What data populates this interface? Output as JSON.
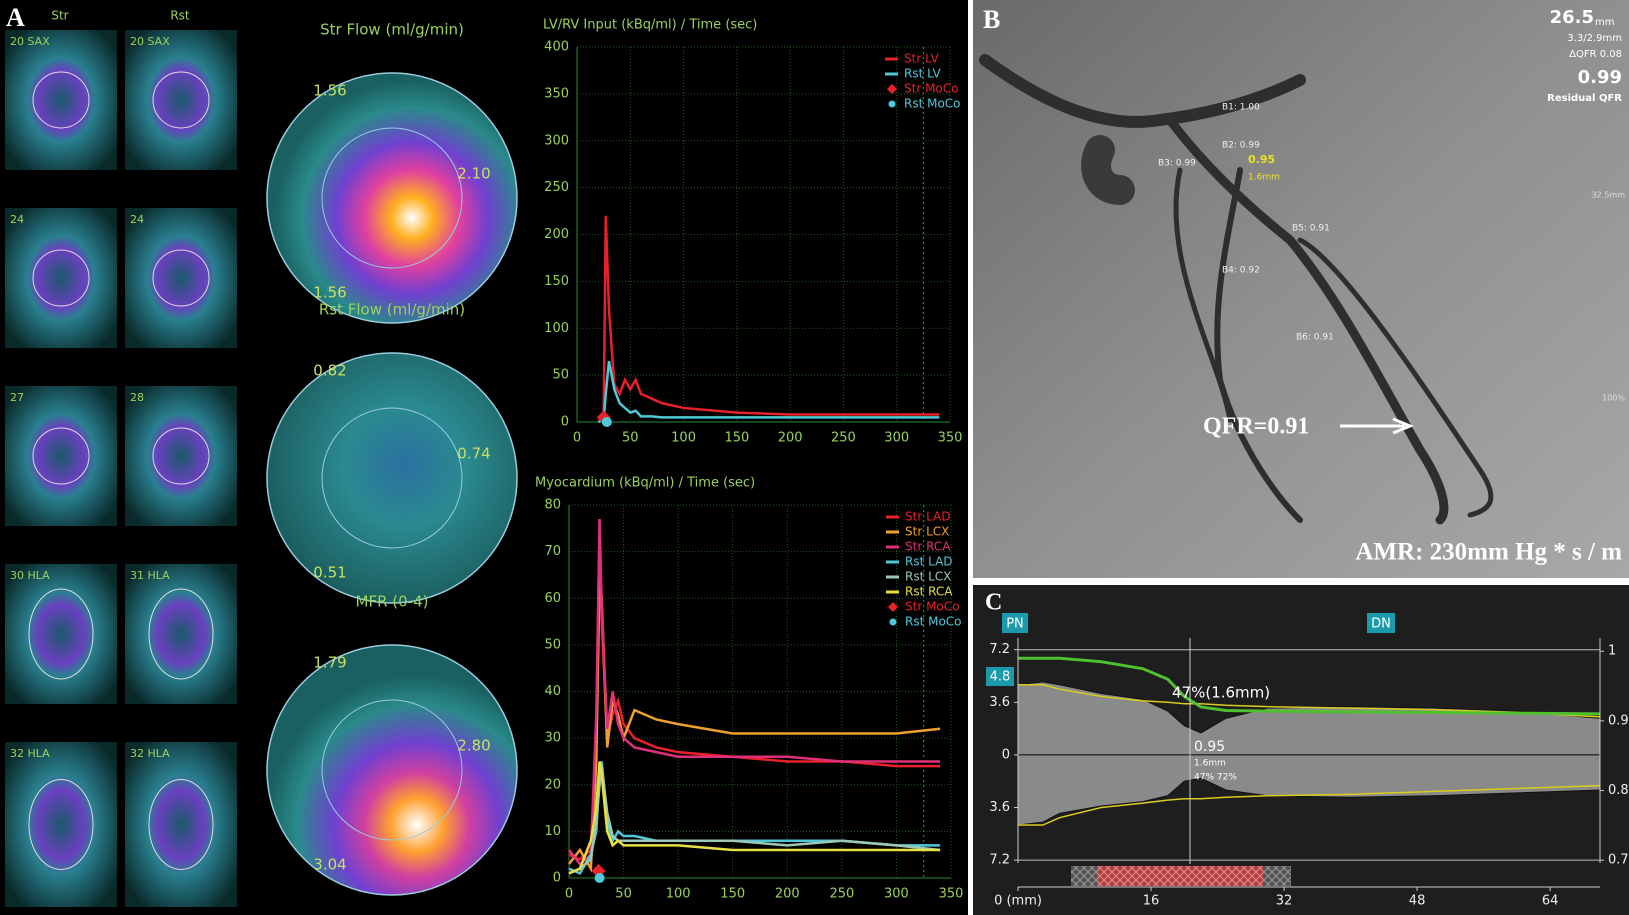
{
  "panel_a": {
    "letter": "A",
    "columns": [
      "Str",
      "Rst"
    ],
    "slices": [
      "20 SAX",
      "20 SAX",
      "24",
      "24",
      "27",
      "28",
      "30 HLA",
      "31 HLA",
      "32 HLA",
      "32 HLA"
    ],
    "maps": [
      {
        "title": "Str Flow (ml/g/min)",
        "values": [
          "1.56",
          "2.10",
          "1.56"
        ]
      },
      {
        "title": "Rst Flow (ml/g/min)",
        "values": [
          "0.82",
          "0.74",
          "0.51"
        ]
      },
      {
        "title": "MFR (0-4)",
        "values": [
          "1.79",
          "2.80",
          "3.04"
        ]
      }
    ]
  },
  "panel_b": {
    "letter": "B",
    "length": "26.5",
    "length_unit": "mm",
    "diameters": "3.3/2.9mm",
    "delta_qfr": "ΔQFR  0.08",
    "residual": "0.99",
    "residual_label": "Residual QFR",
    "branches": [
      "B1: 1.00",
      "B2: 0.99",
      "B3: 0.99",
      "B5: 0.91",
      "B4: 0.92",
      "B6: 0.91"
    ],
    "lesion_qfr": "0.95",
    "lesion_mld": "1.6mm",
    "scale_top": "32.5mm",
    "scale_bottom": "100%",
    "qfr": "QFR=0.91",
    "amr": "AMR: 230mm Hg * s / m"
  },
  "panel_c": {
    "letter": "C",
    "proximal": "PN",
    "distal": "DN",
    "reference": "4.8",
    "stenosis": "47%(1.6mm)",
    "cursor_qfr": "0.95",
    "cursor_mld": "1.6mm",
    "cursor_stenosis": "47% 72%"
  },
  "chart_data": [
    {
      "type": "line",
      "title": "LV/RV Input (kBq/ml) / Time (sec)",
      "xlim": [
        0,
        350
      ],
      "xticks": [
        0,
        50,
        100,
        150,
        200,
        250,
        300,
        350
      ],
      "ylim": [
        0,
        400
      ],
      "yticks": [
        0,
        50,
        100,
        150,
        200,
        250,
        300,
        350,
        400
      ],
      "grid": true,
      "vline": 325,
      "legend": "upper right",
      "series": [
        {
          "name": "Str LV",
          "color": "#e8202a",
          "x": [
            20,
            25,
            27,
            30,
            35,
            40,
            45,
            50,
            55,
            60,
            70,
            80,
            100,
            150,
            200,
            250,
            300,
            340
          ],
          "values": [
            0,
            5,
            220,
            120,
            40,
            30,
            45,
            35,
            45,
            30,
            25,
            20,
            15,
            10,
            8,
            8,
            8,
            8
          ]
        },
        {
          "name": "Rst LV",
          "color": "#4fc8d8",
          "x": [
            20,
            25,
            27,
            30,
            35,
            40,
            45,
            50,
            55,
            60,
            70,
            80,
            100,
            150,
            200,
            250,
            300,
            340
          ],
          "values": [
            0,
            2,
            30,
            65,
            35,
            20,
            15,
            10,
            12,
            6,
            6,
            5,
            5,
            5,
            5,
            5,
            5,
            5
          ]
        },
        {
          "name": "Str MoCo",
          "color": "#e8202a",
          "marker": "diamond",
          "x": [
            25
          ],
          "values": [
            5
          ]
        },
        {
          "name": "Rst MoCo",
          "color": "#4fc8d8",
          "marker": "circle",
          "x": [
            28
          ],
          "values": [
            0
          ]
        }
      ]
    },
    {
      "type": "line",
      "title": "Myocardium (kBq/ml) / Time (sec)",
      "xlim": [
        0,
        350
      ],
      "xticks": [
        0,
        50,
        100,
        150,
        200,
        250,
        300,
        350
      ],
      "ylim": [
        0,
        80
      ],
      "yticks": [
        0,
        10,
        20,
        30,
        40,
        50,
        60,
        70,
        80
      ],
      "grid": true,
      "vline": 325,
      "legend": "upper right",
      "series": [
        {
          "name": "Str LAD",
          "color": "#e8202a",
          "x": [
            0,
            10,
            20,
            25,
            28,
            30,
            35,
            40,
            45,
            50,
            60,
            80,
            100,
            150,
            200,
            250,
            300,
            340
          ],
          "values": [
            5,
            4,
            6,
            30,
            75,
            55,
            30,
            35,
            38,
            33,
            30,
            28,
            27,
            26,
            25,
            25,
            24,
            24
          ]
        },
        {
          "name": "Str LCX",
          "color": "#f0a030",
          "x": [
            0,
            10,
            20,
            25,
            28,
            30,
            35,
            40,
            45,
            50,
            60,
            80,
            100,
            150,
            200,
            250,
            300,
            340
          ],
          "values": [
            3,
            6,
            2,
            25,
            65,
            60,
            28,
            38,
            35,
            30,
            36,
            34,
            33,
            31,
            31,
            31,
            31,
            32
          ]
        },
        {
          "name": "Str RCA",
          "color": "#e0307a",
          "x": [
            0,
            10,
            20,
            25,
            28,
            30,
            35,
            40,
            45,
            50,
            60,
            80,
            100,
            150,
            200,
            250,
            300,
            340
          ],
          "values": [
            6,
            3,
            5,
            35,
            77,
            58,
            32,
            40,
            33,
            30,
            28,
            27,
            26,
            26,
            26,
            25,
            25,
            25
          ]
        },
        {
          "name": "Rst LAD",
          "color": "#4fc8d8",
          "x": [
            0,
            10,
            20,
            25,
            28,
            30,
            35,
            40,
            45,
            50,
            60,
            80,
            100,
            150,
            200,
            250,
            300,
            340
          ],
          "values": [
            2,
            1,
            5,
            10,
            22,
            25,
            12,
            8,
            10,
            9,
            9,
            8,
            8,
            8,
            8,
            8,
            7,
            7
          ]
        },
        {
          "name": "Rst LCX",
          "color": "#9cc8b8",
          "x": [
            0,
            10,
            20,
            25,
            28,
            30,
            35,
            40,
            45,
            50,
            60,
            80,
            100,
            150,
            200,
            250,
            300,
            340
          ],
          "values": [
            1,
            2,
            4,
            12,
            20,
            24,
            14,
            9,
            8,
            8,
            8,
            8,
            8,
            8,
            7,
            8,
            7,
            6
          ]
        },
        {
          "name": "Rst RCA",
          "color": "#e8e040",
          "x": [
            0,
            10,
            20,
            25,
            28,
            30,
            35,
            40,
            45,
            50,
            60,
            80,
            100,
            150,
            200,
            250,
            300,
            340
          ],
          "values": [
            1,
            2,
            8,
            15,
            25,
            22,
            10,
            7,
            8,
            7,
            7,
            7,
            7,
            6,
            6,
            6,
            6,
            6
          ]
        },
        {
          "name": "Str MoCo",
          "color": "#e8202a",
          "marker": "diamond",
          "x": [
            27
          ],
          "values": [
            1.5
          ]
        },
        {
          "name": "Rst MoCo",
          "color": "#4fc8d8",
          "marker": "circle",
          "x": [
            28
          ],
          "values": [
            0
          ]
        }
      ]
    },
    {
      "type": "profile",
      "xlim": [
        0,
        70
      ],
      "xticks": [
        {
          "value": 0,
          "label": "0 (mm)"
        },
        16,
        32,
        48,
        64
      ],
      "ylim": [
        -7.4,
        8
      ],
      "yticks": [
        7.2,
        3.6,
        0,
        {
          "value": -3.6,
          "label": "3.6"
        },
        {
          "value": -7.2,
          "label": "7.2"
        }
      ],
      "y2lim": [
        0.696,
        1.019
      ],
      "y2ticks": [
        1,
        0.9,
        0.8,
        0.7
      ],
      "x": [
        0,
        3,
        5,
        10,
        15,
        18,
        20,
        22,
        25,
        30,
        40,
        50,
        60,
        70
      ],
      "series": [
        {
          "color": "#8a8a8a",
          "fill": true,
          "values": [
            4.8,
            5,
            4.8,
            4.2,
            3.8,
            3,
            2,
            1.5,
            2.5,
            3.2,
            3.3,
            3.2,
            3,
            2.5
          ]
        },
        {
          "color": "#8a8a8a",
          "fill": true,
          "values": [
            -4.8,
            -4.6,
            -4,
            -3.5,
            -3.2,
            -2.8,
            -1.8,
            -1.6,
            -2.4,
            -2.8,
            -2.9,
            -2.8,
            -2.6,
            -2.4
          ]
        },
        {
          "color": "#d8cc20",
          "values": [
            4.8,
            4.8,
            4.5,
            4,
            3.7,
            3.6,
            3.5,
            3.5,
            3.4,
            3.3,
            3.2,
            3.1,
            2.9,
            2.6
          ]
        },
        {
          "color": "#d8cc20",
          "values": [
            -4.8,
            -4.8,
            -4.3,
            -3.6,
            -3.3,
            -3.1,
            -3,
            -3,
            -2.9,
            -2.8,
            -2.7,
            -2.5,
            -2.3,
            -2.1
          ]
        },
        {
          "color": "#4fc12f",
          "axis": "y2",
          "values": [
            0.99,
            0.99,
            0.99,
            0.985,
            0.975,
            0.96,
            0.935,
            0.92,
            0.915,
            0.914,
            0.913,
            0.912,
            0.911,
            0.91
          ]
        }
      ]
    }
  ]
}
